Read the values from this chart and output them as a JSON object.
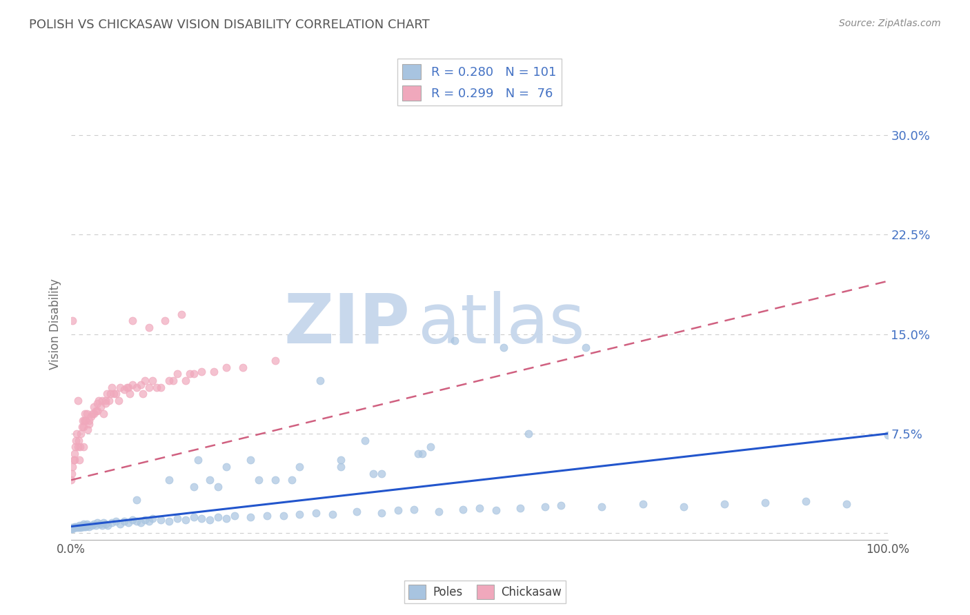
{
  "title": "POLISH VS CHICKASAW VISION DISABILITY CORRELATION CHART",
  "source": "Source: ZipAtlas.com",
  "ylabel": "Vision Disability",
  "xlim": [
    0,
    1.0
  ],
  "ylim": [
    -0.005,
    0.32
  ],
  "ytick_vals": [
    0.0,
    0.075,
    0.15,
    0.225,
    0.3
  ],
  "ytick_labels": [
    "",
    "7.5%",
    "15.0%",
    "22.5%",
    "30.0%"
  ],
  "xtick_vals": [
    0.0,
    1.0
  ],
  "xtick_labels": [
    "0.0%",
    "100.0%"
  ],
  "poles_color": "#a8c4e0",
  "chickasaw_color": "#f0a8bc",
  "poles_line_color": "#2255cc",
  "chickasaw_line_color": "#d06080",
  "axis_text_color": "#4472c4",
  "background_color": "#ffffff",
  "grid_color": "#cccccc",
  "title_color": "#555555",
  "watermark_zip_color": "#c8d8ec",
  "watermark_atlas_color": "#c8d8ec",
  "legend_label_poles": "R = 0.280   N = 101",
  "legend_label_chick": "R = 0.299   N =  76",
  "poles_line_x": [
    0.0,
    1.0
  ],
  "poles_line_y": [
    0.005,
    0.075
  ],
  "chick_line_x": [
    0.0,
    1.0
  ],
  "chick_line_y": [
    0.04,
    0.19
  ],
  "marker_size": 60,
  "marker_alpha": 0.7,
  "poles_scatter_x": [
    0.0,
    0.001,
    0.002,
    0.003,
    0.004,
    0.005,
    0.006,
    0.007,
    0.008,
    0.009,
    0.01,
    0.011,
    0.012,
    0.013,
    0.014,
    0.015,
    0.016,
    0.017,
    0.018,
    0.019,
    0.02,
    0.022,
    0.025,
    0.028,
    0.03,
    0.032,
    0.035,
    0.038,
    0.04,
    0.042,
    0.045,
    0.05,
    0.055,
    0.06,
    0.065,
    0.07,
    0.075,
    0.08,
    0.085,
    0.09,
    0.095,
    0.1,
    0.11,
    0.12,
    0.13,
    0.14,
    0.15,
    0.16,
    0.17,
    0.18,
    0.19,
    0.2,
    0.22,
    0.24,
    0.26,
    0.28,
    0.3,
    0.32,
    0.35,
    0.38,
    0.4,
    0.42,
    0.45,
    0.48,
    0.5,
    0.52,
    0.55,
    0.58,
    0.6,
    0.65,
    0.7,
    0.75,
    0.8,
    0.85,
    0.9,
    0.95,
    1.0,
    0.47,
    0.53,
    0.63,
    0.43,
    0.37,
    0.27,
    0.22,
    0.33,
    0.18,
    0.08,
    0.12,
    0.15,
    0.36,
    0.44,
    0.56,
    0.155,
    0.305,
    0.425,
    0.17,
    0.19,
    0.23,
    0.25,
    0.28,
    0.33,
    0.38
  ],
  "poles_scatter_y": [
    0.003,
    0.004,
    0.003,
    0.004,
    0.005,
    0.004,
    0.005,
    0.004,
    0.005,
    0.004,
    0.006,
    0.005,
    0.004,
    0.006,
    0.005,
    0.007,
    0.005,
    0.006,
    0.005,
    0.007,
    0.006,
    0.005,
    0.006,
    0.007,
    0.006,
    0.008,
    0.007,
    0.006,
    0.008,
    0.007,
    0.006,
    0.008,
    0.009,
    0.007,
    0.009,
    0.008,
    0.01,
    0.009,
    0.008,
    0.01,
    0.009,
    0.011,
    0.01,
    0.009,
    0.011,
    0.01,
    0.012,
    0.011,
    0.01,
    0.012,
    0.011,
    0.013,
    0.012,
    0.013,
    0.013,
    0.014,
    0.015,
    0.014,
    0.016,
    0.015,
    0.017,
    0.018,
    0.016,
    0.018,
    0.019,
    0.017,
    0.019,
    0.02,
    0.021,
    0.02,
    0.022,
    0.02,
    0.022,
    0.023,
    0.024,
    0.022,
    0.074,
    0.145,
    0.14,
    0.14,
    0.06,
    0.045,
    0.04,
    0.055,
    0.05,
    0.035,
    0.025,
    0.04,
    0.035,
    0.07,
    0.065,
    0.075,
    0.055,
    0.115,
    0.06,
    0.04,
    0.05,
    0.04,
    0.04,
    0.05,
    0.055,
    0.045
  ],
  "chick_scatter_x": [
    0.0,
    0.001,
    0.002,
    0.003,
    0.004,
    0.005,
    0.006,
    0.007,
    0.008,
    0.009,
    0.01,
    0.011,
    0.012,
    0.013,
    0.014,
    0.015,
    0.016,
    0.017,
    0.018,
    0.019,
    0.02,
    0.022,
    0.024,
    0.026,
    0.028,
    0.03,
    0.032,
    0.034,
    0.036,
    0.038,
    0.04,
    0.042,
    0.044,
    0.046,
    0.048,
    0.05,
    0.055,
    0.06,
    0.065,
    0.07,
    0.075,
    0.08,
    0.085,
    0.09,
    0.095,
    0.1,
    0.11,
    0.12,
    0.13,
    0.14,
    0.15,
    0.16,
    0.175,
    0.19,
    0.21,
    0.25,
    0.022,
    0.032,
    0.042,
    0.058,
    0.072,
    0.088,
    0.105,
    0.125,
    0.145,
    0.075,
    0.095,
    0.115,
    0.135,
    0.015,
    0.008,
    0.004,
    0.002,
    0.028,
    0.052,
    0.068
  ],
  "chick_scatter_y": [
    0.04,
    0.045,
    0.05,
    0.055,
    0.06,
    0.065,
    0.07,
    0.075,
    0.065,
    0.07,
    0.055,
    0.065,
    0.075,
    0.08,
    0.085,
    0.08,
    0.085,
    0.09,
    0.085,
    0.09,
    0.078,
    0.082,
    0.088,
    0.09,
    0.095,
    0.092,
    0.098,
    0.1,
    0.095,
    0.1,
    0.09,
    0.1,
    0.105,
    0.1,
    0.105,
    0.11,
    0.105,
    0.11,
    0.108,
    0.11,
    0.112,
    0.11,
    0.112,
    0.115,
    0.11,
    0.115,
    0.11,
    0.115,
    0.12,
    0.115,
    0.12,
    0.122,
    0.122,
    0.125,
    0.125,
    0.13,
    0.085,
    0.092,
    0.098,
    0.1,
    0.105,
    0.105,
    0.11,
    0.115,
    0.12,
    0.16,
    0.155,
    0.16,
    0.165,
    0.065,
    0.1,
    0.055,
    0.16,
    0.09,
    0.105,
    0.11
  ]
}
